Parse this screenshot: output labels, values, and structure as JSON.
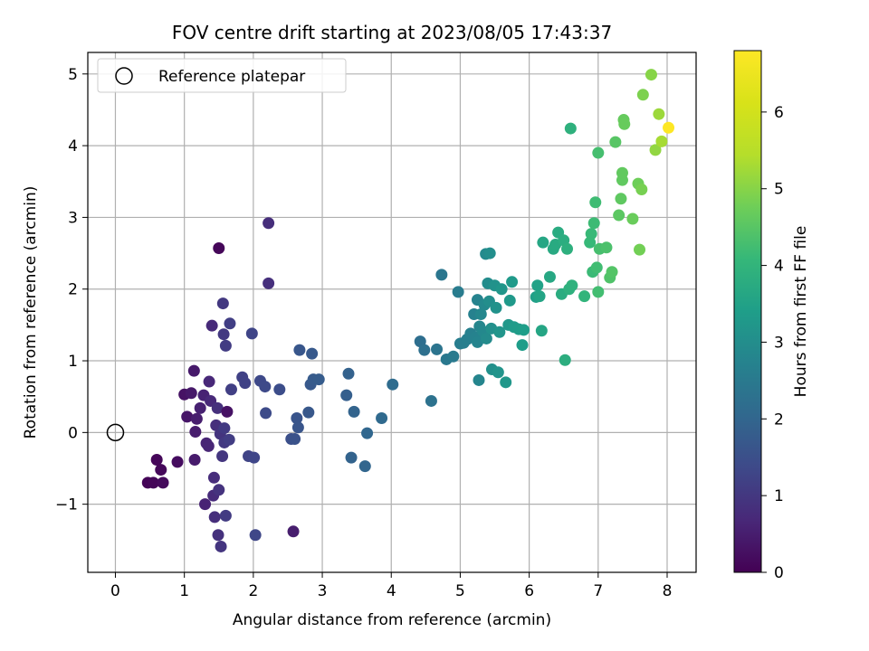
{
  "chart_data": {
    "type": "scatter",
    "title": "FOV centre drift starting at 2023/08/05 17:43:37",
    "xlabel": "Angular distance from reference (arcmin)",
    "ylabel": "Rotation from reference (arcmin)",
    "xlim": [
      -0.4,
      8.42
    ],
    "ylim": [
      -1.95,
      5.3
    ],
    "x_ticks": [
      0,
      1,
      2,
      3,
      4,
      5,
      6,
      7,
      8
    ],
    "y_ticks": [
      -1,
      0,
      1,
      2,
      3,
      4,
      5
    ],
    "y_tick_labels": [
      "−1",
      "0",
      "1",
      "2",
      "3",
      "4",
      "5"
    ],
    "grid": true,
    "legend": {
      "position": "top-left",
      "entries": [
        {
          "label": "Reference platepar",
          "marker": "open-circle"
        }
      ]
    },
    "reference_point": {
      "x": 0,
      "y": 0
    },
    "colorbar": {
      "label": "Hours from first FF file",
      "colormap": "viridis",
      "range": [
        0,
        6.8
      ],
      "ticks": [
        0,
        1,
        2,
        3,
        4,
        5,
        6
      ]
    },
    "series": [
      {
        "name": "",
        "points": [
          [
            0.47,
            -0.7,
            0.05
          ],
          [
            0.55,
            -0.7,
            0.08
          ],
          [
            0.6,
            -0.38,
            0.1
          ],
          [
            0.66,
            -0.52,
            0.12
          ],
          [
            0.69,
            -0.7,
            0.15
          ],
          [
            0.9,
            -0.41,
            0.2
          ],
          [
            1.0,
            0.53,
            0.3
          ],
          [
            1.04,
            0.22,
            0.35
          ],
          [
            1.1,
            0.55,
            0.4
          ],
          [
            1.14,
            0.86,
            0.42
          ],
          [
            1.15,
            -0.38,
            0.45
          ],
          [
            1.16,
            0.01,
            0.48
          ],
          [
            1.18,
            0.19,
            0.5
          ],
          [
            1.23,
            0.34,
            0.55
          ],
          [
            1.28,
            0.52,
            0.58
          ],
          [
            1.3,
            -1.0,
            0.6
          ],
          [
            1.32,
            -0.15,
            0.62
          ],
          [
            1.35,
            -0.19,
            0.65
          ],
          [
            1.36,
            0.71,
            0.68
          ],
          [
            1.38,
            0.44,
            0.7
          ],
          [
            1.4,
            1.49,
            0.72
          ],
          [
            1.42,
            -0.88,
            0.75
          ],
          [
            1.43,
            -0.63,
            0.78
          ],
          [
            1.44,
            -1.18,
            0.8
          ],
          [
            1.46,
            0.1,
            0.82
          ],
          [
            1.48,
            0.34,
            0.85
          ],
          [
            1.49,
            -1.43,
            0.87
          ],
          [
            1.5,
            2.57,
            0.1
          ],
          [
            1.5,
            -0.8,
            0.9
          ],
          [
            1.52,
            -0.02,
            0.92
          ],
          [
            1.53,
            -1.59,
            0.95
          ],
          [
            1.55,
            -0.33,
            0.97
          ],
          [
            1.56,
            1.8,
            1.0
          ],
          [
            1.57,
            1.37,
            1.02
          ],
          [
            1.58,
            -0.14,
            1.04
          ],
          [
            1.58,
            0.06,
            1.06
          ],
          [
            1.6,
            -1.16,
            1.08
          ],
          [
            1.6,
            1.21,
            1.1
          ],
          [
            1.62,
            0.29,
            0.3
          ],
          [
            1.65,
            -0.1,
            1.12
          ],
          [
            1.66,
            1.52,
            1.14
          ],
          [
            1.68,
            0.6,
            1.16
          ],
          [
            1.84,
            0.77,
            1.2
          ],
          [
            1.88,
            0.69,
            1.22
          ],
          [
            1.93,
            -0.33,
            1.25
          ],
          [
            1.98,
            1.38,
            1.28
          ],
          [
            2.01,
            -0.35,
            1.3
          ],
          [
            2.03,
            -1.43,
            1.32
          ],
          [
            2.1,
            0.72,
            1.35
          ],
          [
            2.17,
            0.64,
            1.38
          ],
          [
            2.18,
            0.27,
            1.4
          ],
          [
            2.22,
            2.92,
            0.8
          ],
          [
            2.22,
            2.08,
            0.85
          ],
          [
            2.38,
            0.6,
            1.45
          ],
          [
            2.55,
            -0.09,
            1.5
          ],
          [
            2.58,
            -1.38,
            0.5
          ],
          [
            2.6,
            -0.09,
            1.55
          ],
          [
            2.63,
            0.2,
            1.6
          ],
          [
            2.65,
            0.07,
            1.62
          ],
          [
            2.67,
            1.15,
            1.65
          ],
          [
            2.8,
            0.28,
            1.68
          ],
          [
            2.83,
            0.67,
            1.7
          ],
          [
            2.85,
            1.1,
            1.72
          ],
          [
            2.87,
            0.74,
            1.75
          ],
          [
            2.95,
            0.74,
            1.78
          ],
          [
            3.35,
            0.52,
            1.85
          ],
          [
            3.38,
            0.82,
            1.9
          ],
          [
            3.42,
            -0.35,
            1.92
          ],
          [
            3.46,
            0.29,
            1.95
          ],
          [
            3.62,
            -0.47,
            2.0
          ],
          [
            3.65,
            -0.01,
            2.02
          ],
          [
            3.86,
            0.2,
            2.1
          ],
          [
            4.02,
            0.67,
            2.15
          ],
          [
            4.42,
            1.27,
            2.2
          ],
          [
            4.48,
            1.15,
            2.25
          ],
          [
            4.58,
            0.44,
            2.3
          ],
          [
            4.66,
            1.16,
            2.35
          ],
          [
            4.73,
            2.2,
            2.4
          ],
          [
            4.8,
            1.02,
            2.45
          ],
          [
            4.9,
            1.06,
            2.5
          ],
          [
            4.97,
            1.96,
            2.55
          ],
          [
            5.0,
            1.24,
            2.6
          ],
          [
            5.05,
            1.25,
            2.62
          ],
          [
            5.1,
            1.3,
            2.65
          ],
          [
            5.15,
            1.38,
            2.68
          ],
          [
            5.2,
            1.65,
            2.7
          ],
          [
            5.22,
            1.33,
            2.72
          ],
          [
            5.25,
            1.85,
            2.75
          ],
          [
            5.25,
            1.26,
            2.77
          ],
          [
            5.27,
            0.73,
            2.8
          ],
          [
            5.28,
            1.48,
            2.82
          ],
          [
            5.3,
            1.65,
            2.85
          ],
          [
            5.33,
            1.41,
            2.87
          ],
          [
            5.35,
            1.78,
            2.9
          ],
          [
            5.37,
            2.49,
            2.92
          ],
          [
            5.38,
            1.31,
            2.95
          ],
          [
            5.4,
            2.08,
            2.97
          ],
          [
            5.42,
            1.83,
            3.0
          ],
          [
            5.43,
            2.5,
            3.02
          ],
          [
            5.45,
            1.45,
            3.05
          ],
          [
            5.46,
            0.88,
            3.07
          ],
          [
            5.5,
            2.05,
            3.1
          ],
          [
            5.52,
            1.74,
            3.12
          ],
          [
            5.55,
            0.84,
            3.15
          ],
          [
            5.57,
            1.4,
            3.18
          ],
          [
            5.6,
            2.0,
            3.2
          ],
          [
            5.66,
            0.7,
            3.22
          ],
          [
            5.7,
            1.5,
            3.25
          ],
          [
            5.72,
            1.84,
            3.28
          ],
          [
            5.75,
            2.1,
            3.3
          ],
          [
            5.78,
            1.47,
            3.32
          ],
          [
            5.85,
            1.44,
            3.35
          ],
          [
            5.9,
            1.22,
            3.38
          ],
          [
            5.92,
            1.43,
            3.4
          ],
          [
            6.1,
            1.89,
            3.45
          ],
          [
            6.12,
            2.05,
            3.5
          ],
          [
            6.15,
            1.9,
            3.55
          ],
          [
            6.18,
            1.42,
            3.6
          ],
          [
            6.2,
            2.65,
            3.62
          ],
          [
            6.3,
            2.17,
            3.65
          ],
          [
            6.35,
            2.56,
            3.7
          ],
          [
            6.38,
            2.62,
            3.72
          ],
          [
            6.42,
            2.79,
            3.75
          ],
          [
            6.47,
            1.93,
            3.78
          ],
          [
            6.5,
            2.68,
            3.8
          ],
          [
            6.52,
            1.01,
            3.82
          ],
          [
            6.55,
            2.56,
            3.85
          ],
          [
            6.58,
            2.0,
            3.88
          ],
          [
            6.6,
            4.24,
            3.9
          ],
          [
            6.62,
            2.05,
            3.92
          ],
          [
            6.8,
            1.9,
            4.0
          ],
          [
            6.88,
            2.65,
            4.1
          ],
          [
            6.9,
            2.77,
            4.12
          ],
          [
            6.92,
            2.24,
            4.15
          ],
          [
            6.94,
            2.92,
            4.18
          ],
          [
            6.96,
            3.21,
            4.2
          ],
          [
            6.98,
            2.3,
            4.22
          ],
          [
            7.0,
            1.96,
            4.25
          ],
          [
            7.0,
            3.9,
            4.28
          ],
          [
            7.02,
            2.56,
            4.3
          ],
          [
            7.12,
            2.58,
            4.35
          ],
          [
            7.17,
            2.16,
            4.4
          ],
          [
            7.2,
            2.24,
            4.45
          ],
          [
            7.25,
            4.05,
            4.5
          ],
          [
            7.3,
            3.03,
            4.55
          ],
          [
            7.33,
            3.26,
            4.58
          ],
          [
            7.35,
            3.52,
            4.6
          ],
          [
            7.35,
            3.62,
            4.62
          ],
          [
            7.37,
            4.36,
            4.65
          ],
          [
            7.38,
            4.3,
            4.68
          ],
          [
            7.5,
            2.98,
            4.7
          ],
          [
            7.58,
            3.47,
            4.75
          ],
          [
            7.6,
            2.55,
            4.8
          ],
          [
            7.63,
            3.39,
            4.85
          ],
          [
            7.65,
            4.71,
            4.9
          ],
          [
            7.77,
            4.99,
            5.0
          ],
          [
            7.83,
            3.94,
            5.1
          ],
          [
            7.88,
            4.44,
            5.2
          ],
          [
            7.92,
            4.06,
            5.3
          ],
          [
            8.02,
            4.25,
            6.8
          ]
        ]
      }
    ]
  }
}
